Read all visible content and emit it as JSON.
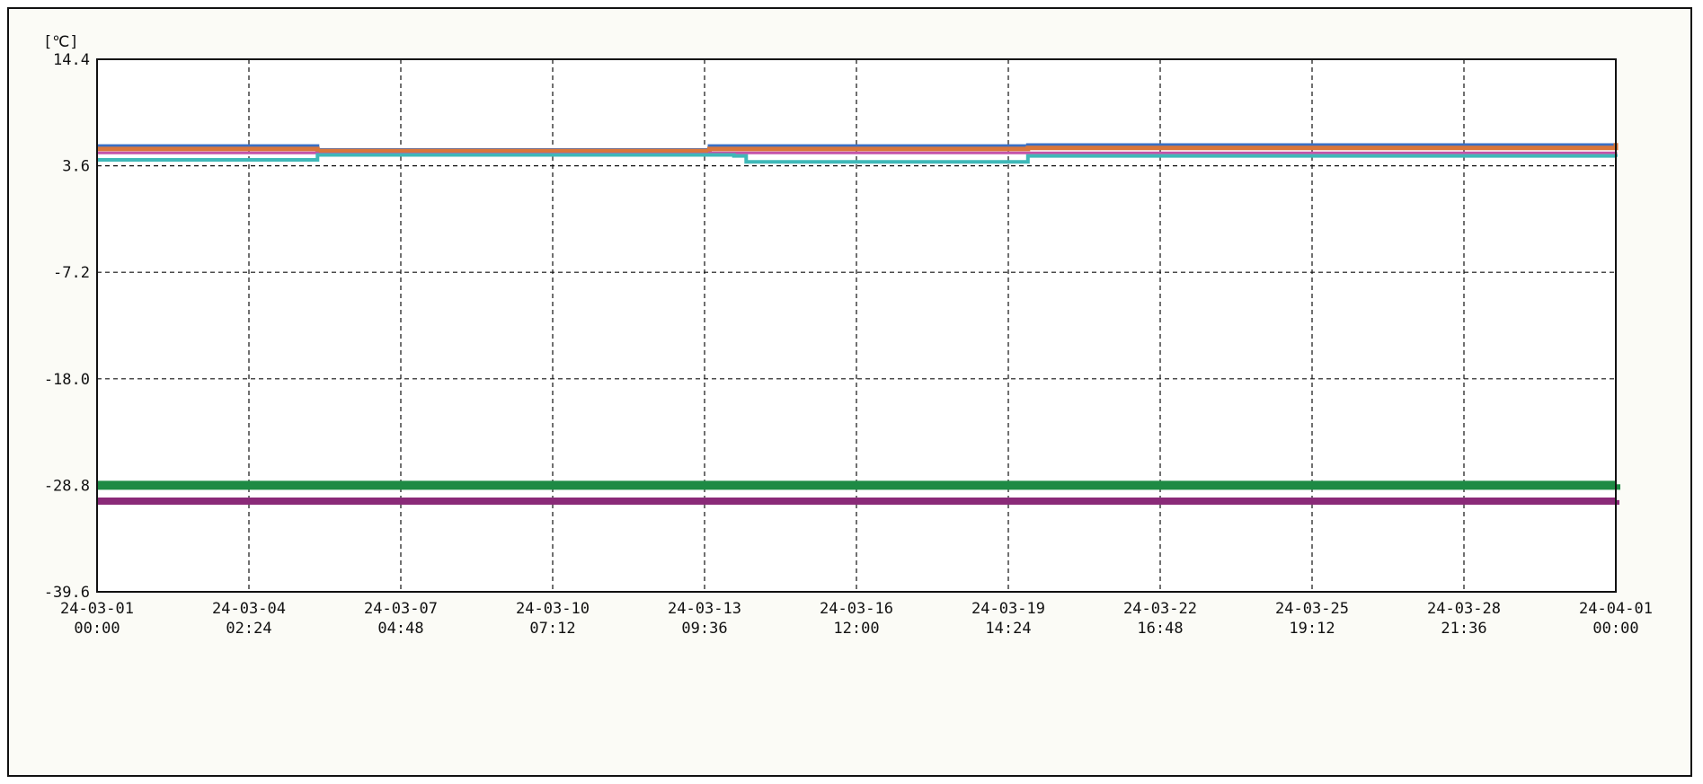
{
  "chart_data": {
    "type": "line",
    "title": "",
    "xlabel": "",
    "ylabel": "[℃]",
    "grid": true,
    "legend": "none",
    "y_ticks": [
      "14.4",
      "3.6",
      "-7.2",
      "-18.0",
      "-28.8",
      "-39.6"
    ],
    "ylim": [
      -39.6,
      14.4
    ],
    "x_ticks": [
      {
        "date": "24-03-01",
        "time": "00:00"
      },
      {
        "date": "24-03-04",
        "time": "02:24"
      },
      {
        "date": "24-03-07",
        "time": "04:48"
      },
      {
        "date": "24-03-10",
        "time": "07:12"
      },
      {
        "date": "24-03-13",
        "time": "09:36"
      },
      {
        "date": "24-03-16",
        "time": "12:00"
      },
      {
        "date": "24-03-19",
        "time": "14:24"
      },
      {
        "date": "24-03-22",
        "time": "16:48"
      },
      {
        "date": "24-03-25",
        "time": "19:12"
      },
      {
        "date": "24-03-28",
        "time": "21:36"
      },
      {
        "date": "24-04-01",
        "time": "00:00"
      }
    ],
    "xlim": [
      "2024-03-01 00:00",
      "2024-04-01 00:00"
    ],
    "series": [
      {
        "color": "#3a6fc4",
        "x": [
          "2024-03-01 00:00",
          "2024-03-05 12:00",
          "2024-03-13 12:00",
          "2024-03-20 00:00",
          "2024-03-27 00:00",
          "2024-04-01 00:00"
        ],
        "values": [
          5.6,
          5.2,
          5.6,
          5.7,
          5.7,
          5.8
        ]
      },
      {
        "color": "#d9763a",
        "x": [
          "2024-03-01 00:00",
          "2024-03-05 12:00",
          "2024-03-13 12:00",
          "2024-03-20 00:00",
          "2024-03-27 00:00",
          "2024-04-01 00:00"
        ],
        "values": [
          5.3,
          5.1,
          5.3,
          5.4,
          5.4,
          5.9
        ]
      },
      {
        "color": "#c552a8",
        "x": [
          "2024-03-01 00:00",
          "2024-03-05 12:00",
          "2024-03-13 12:00",
          "2024-03-20 00:00",
          "2024-03-27 00:00",
          "2024-04-01 00:00"
        ],
        "values": [
          4.9,
          4.8,
          4.9,
          4.9,
          4.9,
          5.0
        ]
      },
      {
        "color": "#3fb8b8",
        "x": [
          "2024-03-01 00:00",
          "2024-03-05 12:00",
          "2024-03-14 00:00",
          "2024-03-14 06:00",
          "2024-03-20 00:00",
          "2024-03-27 00:00",
          "2024-04-01 00:00"
        ],
        "values": [
          4.2,
          4.7,
          4.6,
          4.0,
          4.6,
          4.6,
          4.5
        ]
      },
      {
        "color": "#1e8a44",
        "x": [
          "2024-03-01 00:00",
          "2024-04-01 00:00"
        ],
        "values": [
          -28.8,
          -28.7
        ]
      },
      {
        "color": "#8a2a78",
        "x": [
          "2024-03-01 00:00",
          "2024-04-01 00:00"
        ],
        "values": [
          -30.4,
          -30.3
        ]
      }
    ]
  }
}
